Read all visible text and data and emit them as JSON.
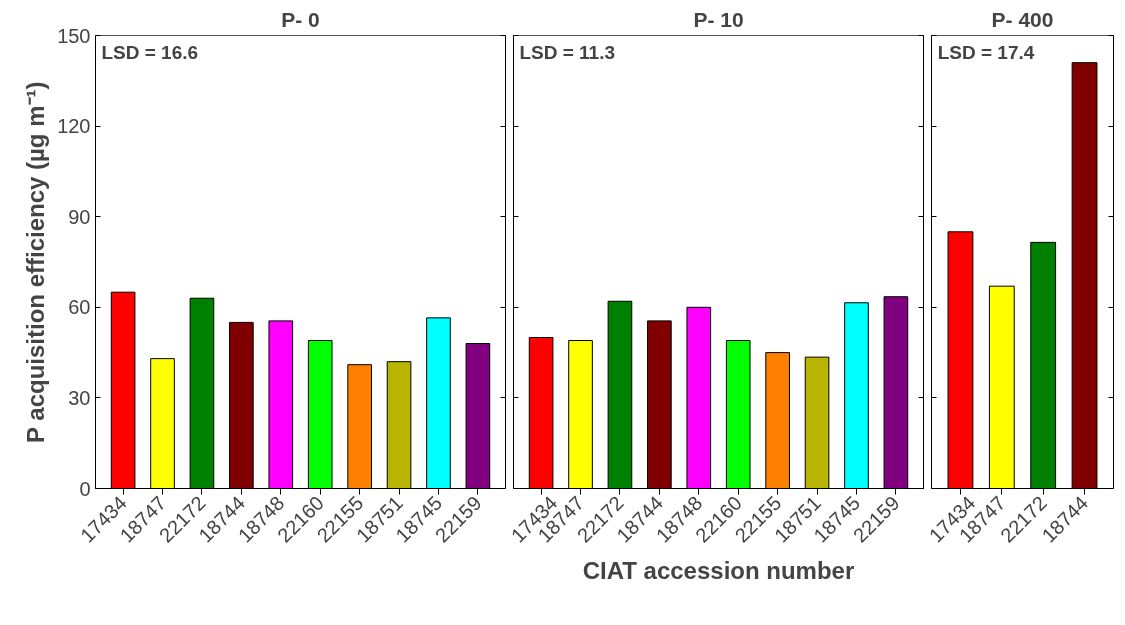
{
  "chart_data": [
    {
      "type": "bar",
      "title": "P- 0",
      "ylabel": "P acquisition efficiency (µg m⁻¹)",
      "categories": [
        "17434",
        "18747",
        "22172",
        "18744",
        "18748",
        "22160",
        "22155",
        "18751",
        "18745",
        "22159"
      ],
      "values": [
        65,
        43,
        63,
        55,
        55.5,
        49,
        41,
        42,
        56.5,
        48
      ],
      "colors": [
        "#ff0000",
        "#ffff00",
        "#008000",
        "#800000",
        "#ff00ff",
        "#00ff00",
        "#ff8000",
        "#b8b400",
        "#00ffff",
        "#800080"
      ],
      "ylim": [
        0,
        150
      ],
      "yticks": [
        0,
        30,
        60,
        90,
        120,
        150
      ],
      "annotations": [
        "LSD = 16.6"
      ]
    },
    {
      "type": "bar",
      "title": "P- 10",
      "xlabel": "CIAT accession number",
      "categories": [
        "17434",
        "18747",
        "22172",
        "18744",
        "18748",
        "22160",
        "22155",
        "18751",
        "18745",
        "22159"
      ],
      "values": [
        50,
        49,
        62,
        55.5,
        60,
        49,
        45,
        43.5,
        61.5,
        63.5
      ],
      "colors": [
        "#ff0000",
        "#ffff00",
        "#008000",
        "#800000",
        "#ff00ff",
        "#00ff00",
        "#ff8000",
        "#b8b400",
        "#00ffff",
        "#800080"
      ],
      "ylim": [
        0,
        150
      ],
      "yticks": [
        0,
        30,
        60,
        90,
        120,
        150
      ],
      "tick_labels": "x",
      "annotations": [
        "LSD = 11.3"
      ]
    },
    {
      "type": "bar",
      "title": "P- 400",
      "categories": [
        "17434",
        "18747",
        "22172",
        "18744"
      ],
      "values": [
        85,
        67,
        81.5,
        141
      ],
      "colors": [
        "#ff0000",
        "#ffff00",
        "#008000",
        "#800000"
      ],
      "ylim": [
        0,
        150
      ],
      "yticks": [
        0,
        30,
        60,
        90,
        120,
        150
      ],
      "tick_labels": "x",
      "annotations": [
        "LSD = 17.4"
      ]
    }
  ]
}
